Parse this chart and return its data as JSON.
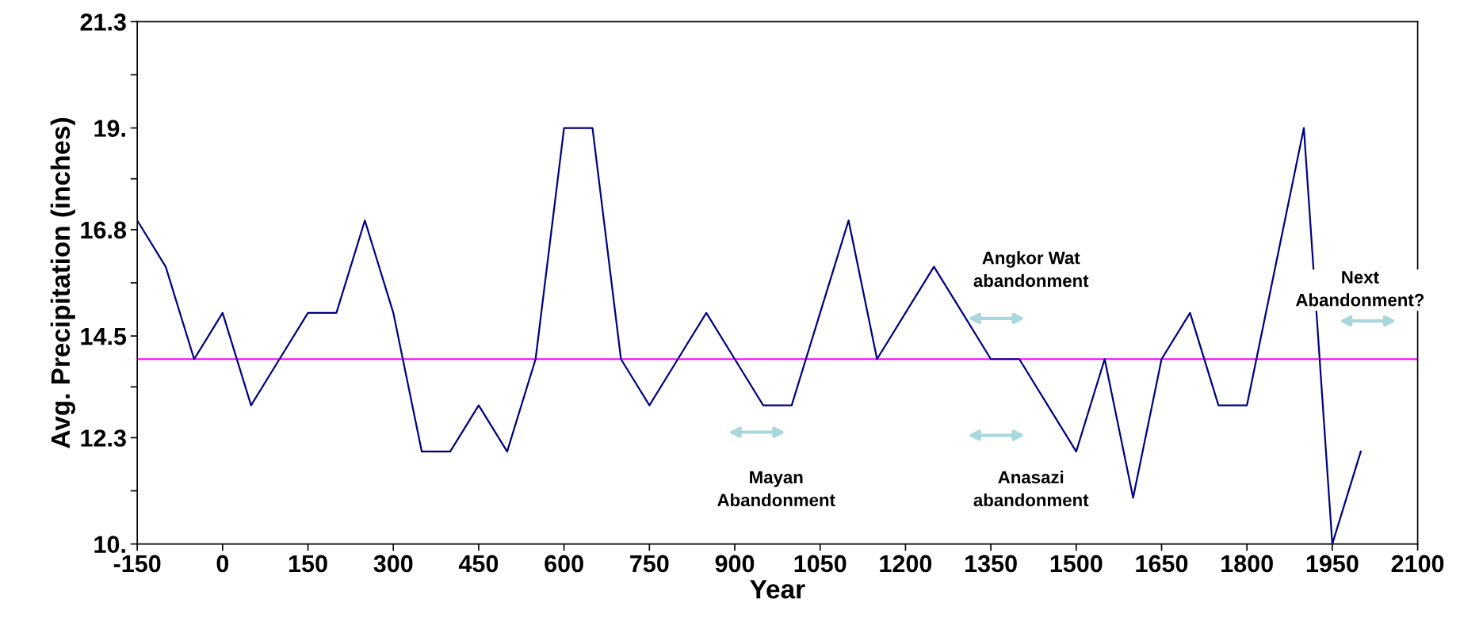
{
  "chart_data": {
    "type": "line",
    "xlabel": "Year",
    "ylabel": "Avg. Precipitation (inches)",
    "x": [
      -150,
      -100,
      -50,
      0,
      50,
      100,
      150,
      200,
      250,
      300,
      350,
      400,
      450,
      500,
      550,
      600,
      650,
      700,
      750,
      800,
      850,
      900,
      950,
      1000,
      1050,
      1100,
      1150,
      1200,
      1250,
      1300,
      1350,
      1400,
      1450,
      1500,
      1550,
      1600,
      1650,
      1700,
      1750,
      1800,
      1850,
      1900,
      1950,
      2000
    ],
    "series": [
      {
        "color": "#000080",
        "values": [
          17,
          16,
          14,
          15,
          13,
          14,
          15,
          15,
          17,
          15,
          12,
          12,
          13,
          12,
          14,
          19,
          19,
          14,
          13,
          14,
          15,
          14,
          13,
          13,
          15,
          17,
          14,
          15,
          16,
          15,
          14,
          14,
          13,
          12,
          14,
          11,
          14,
          15,
          13,
          13,
          16,
          19,
          10,
          12
        ]
      }
    ],
    "xlim": [
      -150,
      2100
    ],
    "xticks": [
      -150,
      0,
      150,
      300,
      450,
      600,
      750,
      900,
      1050,
      1200,
      1350,
      1500,
      1650,
      1800,
      1950,
      2100
    ],
    "ylim": [
      10,
      21.3
    ],
    "yticks": [
      {
        "value": 10,
        "label": "10."
      },
      {
        "value": 11.15,
        "label": null
      },
      {
        "value": 12.3,
        "label": "12.3"
      },
      {
        "value": 13.4,
        "label": null
      },
      {
        "value": 14.5,
        "label": "14.5"
      },
      {
        "value": 15.65,
        "label": null
      },
      {
        "value": 16.8,
        "label": "16.8"
      },
      {
        "value": 17.9,
        "label": null
      },
      {
        "value": 19,
        "label": "19."
      },
      {
        "value": 20.15,
        "label": null
      },
      {
        "value": 21.3,
        "label": "21.3"
      }
    ],
    "ref_lines": [
      {
        "axis": "y",
        "value": 14,
        "color": "#ff00ff"
      }
    ],
    "annotations": [
      "Mayan\nAbandonment",
      "Angkor Wat\nabandonment",
      "Anasazi\nabandonment",
      "Next\nAbandonment?"
    ],
    "grid": false,
    "legend": false,
    "marker": "none",
    "line_style": "solid"
  }
}
